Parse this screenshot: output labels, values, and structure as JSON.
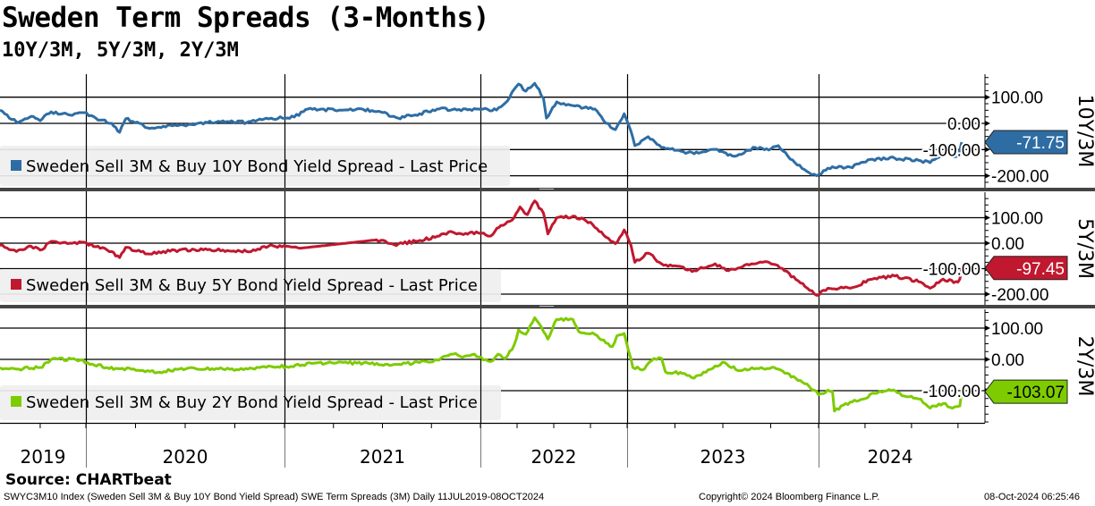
{
  "header": {
    "title": "Sweden Term Spreads (3-Months)",
    "subtitle": "10Y/3M, 5Y/3M, 2Y/3M"
  },
  "footer": {
    "source": "Source: CHARTbeat",
    "description": "SWYC3M10 Index (Sweden Sell 3M & Buy 10Y Bond Yield Spread) SWE Term Spreads (3M)  Daily 11JUL2019-08OCT2024",
    "copyright": "Copyright© 2024 Bloomberg Finance L.P.",
    "timestamp": "08-Oct-2024 06:25:46"
  },
  "chart_data": {
    "type": "line",
    "title": "Sweden Term Spreads (3-Months)",
    "subtitle": "10Y/3M, 5Y/3M, 2Y/3M",
    "x_unit": "decimal year",
    "x_range": [
      2019.53,
      2024.77
    ],
    "x_tick_labels": [
      "2019",
      "2020",
      "2021",
      "2022",
      "2023",
      "2024"
    ],
    "grid": true,
    "legend_placement": "bottom-left of each panel",
    "panels": [
      {
        "panel_label": "10Y/3M",
        "legend": "Sweden Sell 3M & Buy 10Y Bond Yield Spread - Last Price",
        "color": "#2e6da4",
        "text_color": "#ffffff",
        "last_value": -71.75,
        "last_label": "-71.75",
        "yticks": [
          100,
          0,
          -100,
          -200
        ],
        "ytick_labels": [
          "100.00",
          "0.00",
          "-100.00",
          "-200.00"
        ],
        "x": [
          2019.53,
          2019.62,
          2019.7,
          2019.75,
          2019.81,
          2019.9,
          2019.99,
          2020.05,
          2020.13,
          2020.17,
          2020.2,
          2020.27,
          2020.31,
          2020.47,
          2020.69,
          2020.81,
          2020.92,
          2021.05,
          2021.12,
          2021.28,
          2021.37,
          2021.49,
          2021.58,
          2021.69,
          2021.79,
          2021.88,
          2021.99,
          2022.02,
          2022.11,
          2022.17,
          2022.23,
          2022.26,
          2022.31,
          2022.37,
          2022.43,
          2022.45,
          2022.52,
          2022.63,
          2022.78,
          2022.84,
          2022.92,
          2022.98,
          2023.02,
          2023.04,
          2023.11,
          2023.18,
          2023.35,
          2023.46,
          2023.56,
          2023.67,
          2023.74,
          2023.79,
          2023.84,
          2023.95,
          2023.99,
          2024.05,
          2024.17,
          2024.29,
          2024.41,
          2024.55,
          2024.6,
          2024.67,
          2024.75,
          2024.76,
          2024.77
        ],
        "y": [
          50,
          5,
          27,
          10,
          44,
          34,
          41,
          20,
          0,
          -34,
          17,
          0,
          -17,
          -7,
          10,
          3,
          17,
          24,
          55,
          51,
          55,
          44,
          20,
          37,
          55,
          51,
          55,
          55,
          51,
          78,
          130,
          150,
          123,
          153,
          96,
          20,
          82,
          68,
          55,
          10,
          -24,
          37,
          -30,
          -85,
          -51,
          -92,
          -116,
          -99,
          -126,
          -92,
          -102,
          -85,
          -126,
          -188,
          -200,
          -171,
          -167,
          -137,
          -133,
          -143,
          -150,
          -116,
          -126,
          -102,
          -71.75
        ]
      },
      {
        "panel_label": "5Y/3M",
        "legend": "Sweden Sell 3M & Buy 5Y Bond Yield Spread - Last Price",
        "color": "#c0182f",
        "text_color": "#ffffff",
        "last_value": -97.45,
        "last_label": "-97.45",
        "yticks": [
          100,
          0,
          -100,
          -200
        ],
        "ytick_labels": [
          "100.00",
          "0.00",
          "-100.00",
          "-200.00"
        ],
        "x": [
          2019.53,
          2019.62,
          2019.7,
          2019.75,
          2019.81,
          2019.9,
          2019.99,
          2020.05,
          2020.13,
          2020.17,
          2020.2,
          2020.31,
          2020.47,
          2020.69,
          2020.81,
          2020.92,
          2021.01,
          2021.08,
          2021.47,
          2021.56,
          2021.67,
          2021.79,
          2021.85,
          2021.88,
          2021.99,
          2022.02,
          2022.07,
          2022.14,
          2022.23,
          2022.27,
          2022.32,
          2022.37,
          2022.43,
          2022.46,
          2022.52,
          2022.63,
          2022.75,
          2022.81,
          2022.92,
          2022.98,
          2023.02,
          2023.04,
          2023.11,
          2023.18,
          2023.35,
          2023.46,
          2023.53,
          2023.65,
          2023.74,
          2023.81,
          2023.93,
          2023.99,
          2024.05,
          2024.17,
          2024.29,
          2024.41,
          2024.55,
          2024.6,
          2024.67,
          2024.75,
          2024.76,
          2024.77
        ],
        "y": [
          -8,
          -33,
          -12,
          -27,
          7,
          -2,
          4,
          -14,
          -33,
          -57,
          -17,
          -42,
          -27,
          -27,
          -33,
          -12,
          -12,
          -20,
          13,
          -6,
          7,
          28,
          46,
          36,
          40,
          40,
          28,
          70,
          100,
          142,
          112,
          166,
          118,
          36,
          100,
          106,
          82,
          46,
          -2,
          52,
          -8,
          -75,
          -39,
          -81,
          -108,
          -81,
          -108,
          -81,
          -75,
          -99,
          -171,
          -205,
          -177,
          -177,
          -141,
          -129,
          -153,
          -177,
          -141,
          -153,
          -141,
          -97.45
        ]
      },
      {
        "panel_label": "2Y/3M",
        "legend": "Sweden Sell 3M & Buy 2Y Bond Yield Spread - Last Price",
        "color": "#7ecb00",
        "text_color": "#000000",
        "last_value": -103.07,
        "last_label": "-103.07",
        "yticks": [
          100,
          0,
          -100
        ],
        "ytick_labels": [
          "100.00",
          "0.00",
          "-100.00"
        ],
        "x": [
          2019.53,
          2019.62,
          2019.75,
          2019.82,
          2019.97,
          2020.02,
          2020.15,
          2020.31,
          2020.36,
          2020.47,
          2020.69,
          2020.85,
          2020.92,
          2021.01,
          2021.15,
          2021.37,
          2021.56,
          2021.69,
          2021.79,
          2021.85,
          2021.92,
          2021.97,
          2022.02,
          2022.07,
          2022.12,
          2022.17,
          2022.23,
          2022.26,
          2022.31,
          2022.37,
          2022.43,
          2022.46,
          2022.52,
          2022.63,
          2022.67,
          2022.78,
          2022.9,
          2022.93,
          2022.98,
          2023.01,
          2023.03,
          2023.09,
          2023.14,
          2023.18,
          2023.2,
          2023.3,
          2023.35,
          2023.46,
          2023.51,
          2023.58,
          2023.7,
          2023.79,
          2023.88,
          2023.94,
          2024.0,
          2024.05,
          2024.075,
          2024.085,
          2024.17,
          2024.24,
          2024.29,
          2024.38,
          2024.46,
          2024.55,
          2024.6,
          2024.67,
          2024.72,
          2024.76,
          2024.77
        ],
        "y": [
          -26,
          -31,
          -26,
          3,
          -2,
          -16,
          -29,
          -36,
          -42,
          -31,
          -31,
          -31,
          -21,
          -23,
          -12,
          -12,
          -16,
          -10,
          -2,
          17,
          10,
          17,
          -2,
          -7,
          17,
          3,
          46,
          94,
          80,
          133,
          89,
          65,
          128,
          128,
          89,
          80,
          41,
          75,
          83,
          22,
          -26,
          -31,
          3,
          3,
          -40,
          -45,
          -60,
          -21,
          -10,
          -36,
          -26,
          -31,
          -60,
          -79,
          -113,
          -98,
          -103,
          -165,
          -137,
          -127,
          -108,
          -96,
          -117,
          -127,
          -156,
          -141,
          -156,
          -149,
          -103.07
        ]
      }
    ]
  }
}
